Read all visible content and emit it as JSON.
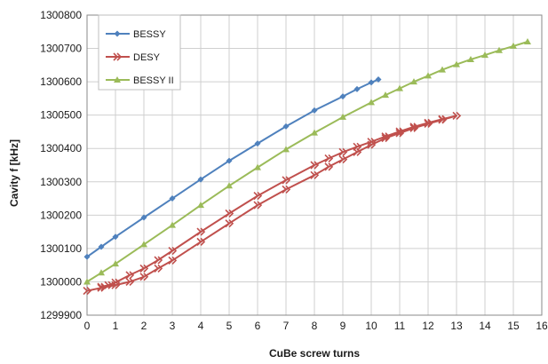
{
  "chart_data": {
    "type": "line",
    "title": "",
    "xlabel": "CuBe screw turns",
    "ylabel": "Cavity f [kHz]",
    "xlim": [
      0,
      16
    ],
    "ylim": [
      1299900,
      1300800
    ],
    "x_ticks": [
      0,
      1,
      2,
      3,
      4,
      5,
      6,
      7,
      8,
      9,
      10,
      11,
      12,
      13,
      14,
      15,
      16
    ],
    "y_ticks": [
      1299900,
      1300000,
      1300100,
      1300200,
      1300300,
      1300400,
      1300500,
      1300600,
      1300700,
      1300800
    ],
    "grid": true,
    "legend_position": "top-left",
    "series": [
      {
        "name": "BESSY",
        "color": "#4f81bd",
        "marker": "diamond",
        "x": [
          0,
          0.5,
          1,
          2,
          3,
          4,
          5,
          6,
          7,
          8,
          9,
          9.5,
          10,
          10.25
        ],
        "y": [
          1300075,
          1300105,
          1300135,
          1300193,
          1300250,
          1300307,
          1300363,
          1300415,
          1300466,
          1300514,
          1300556,
          1300578,
          1300598,
          1300607
        ]
      },
      {
        "name": "DESY",
        "color": "#c0504d",
        "marker": "arrow",
        "x": [
          0,
          0.5,
          1,
          1.5,
          2,
          2.5,
          3,
          4,
          5,
          6,
          7,
          8,
          8.5,
          9,
          9.5,
          10,
          10.5,
          11,
          11.5,
          12,
          12.5,
          13,
          12.5,
          12,
          11.5,
          11,
          10.5,
          10,
          9.5,
          9,
          8.5,
          8,
          7,
          6,
          5,
          4,
          3,
          2.5,
          2,
          1.5,
          1,
          0.75,
          0.5
        ],
        "y": [
          1299973,
          1299982,
          1299990,
          1300000,
          1300015,
          1300040,
          1300064,
          1300120,
          1300175,
          1300230,
          1300277,
          1300320,
          1300345,
          1300367,
          1300389,
          1300411,
          1300431,
          1300446,
          1300461,
          1300474,
          1300486,
          1300498,
          1300488,
          1300477,
          1300465,
          1300451,
          1300436,
          1300420,
          1300405,
          1300389,
          1300370,
          1300350,
          1300305,
          1300258,
          1300205,
          1300150,
          1300093,
          1300065,
          1300040,
          1300020,
          1299998,
          1299990,
          1299985
        ]
      },
      {
        "name": "BESSY II",
        "color": "#9bbb59",
        "marker": "triangle",
        "x": [
          0,
          0.5,
          1,
          2,
          3,
          4,
          5,
          6,
          7,
          8,
          9,
          10,
          10.5,
          11,
          11.5,
          12,
          12.5,
          13,
          13.5,
          14,
          14.5,
          15,
          15.5
        ],
        "y": [
          1300000,
          1300027,
          1300054,
          1300112,
          1300170,
          1300230,
          1300288,
          1300343,
          1300397,
          1300447,
          1300494,
          1300538,
          1300560,
          1300580,
          1300600,
          1300618,
          1300636,
          1300652,
          1300667,
          1300680,
          1300694,
          1300707,
          1300720
        ]
      }
    ]
  }
}
